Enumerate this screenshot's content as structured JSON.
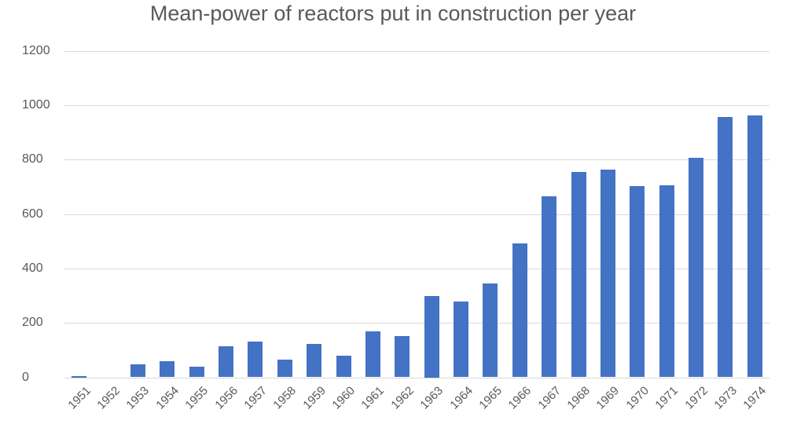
{
  "chart_data": {
    "type": "bar",
    "title": "Mean-power of reactors put in construction per year",
    "xlabel": "",
    "ylabel": "",
    "ylim": [
      0,
      1200
    ],
    "yticks": [
      0,
      200,
      400,
      600,
      800,
      1000,
      1200
    ],
    "grid": true,
    "legend": null,
    "bar_color": "#4472C4",
    "categories": [
      "1951",
      "1952",
      "1953",
      "1954",
      "1955",
      "1956",
      "1957",
      "1958",
      "1959",
      "1960",
      "1961",
      "1962",
      "1963",
      "1964",
      "1965",
      "1966",
      "1967",
      "1968",
      "1969",
      "1970",
      "1971",
      "1972",
      "1973",
      "1974"
    ],
    "values": [
      4,
      0,
      47,
      58,
      40,
      114,
      132,
      66,
      122,
      80,
      168,
      152,
      300,
      278,
      345,
      492,
      664,
      753,
      763,
      703,
      706,
      806,
      957,
      961
    ]
  },
  "title": "Mean-power of reactors put in construction per year",
  "y_axis": {
    "labels": [
      "0",
      "200",
      "400",
      "600",
      "800",
      "1000",
      "1200"
    ]
  }
}
